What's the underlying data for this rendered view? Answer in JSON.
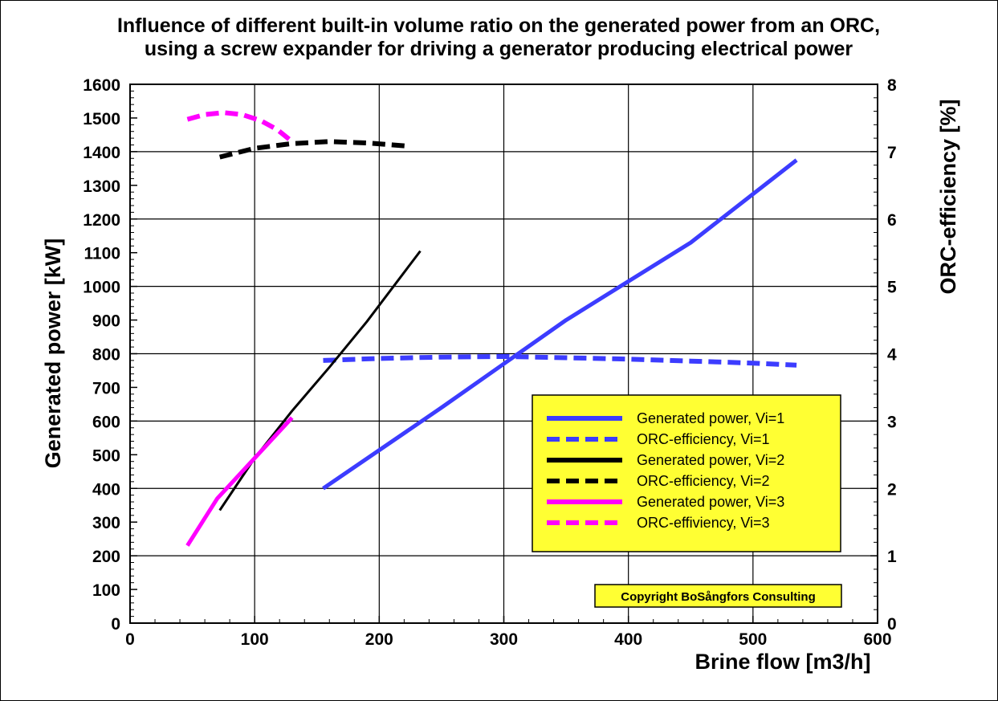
{
  "chart_data": {
    "type": "line",
    "title": [
      "Influence of different built-in volume ratio on the generated power from an ORC,",
      "using a screw expander for driving a generator producing electrical power"
    ],
    "xlabel": "Brine flow [m3/h]",
    "ylabel": "Generated  power [kW]",
    "y2label": "ORC-efficiency [%]",
    "xlim": [
      0,
      600
    ],
    "ylim": [
      0,
      1600
    ],
    "y2lim": [
      0,
      8
    ],
    "xticks": [
      0,
      100,
      200,
      300,
      400,
      500,
      600
    ],
    "yticks": [
      0,
      100,
      200,
      300,
      400,
      500,
      600,
      700,
      800,
      900,
      1000,
      1100,
      1200,
      1300,
      1400,
      1500,
      1600
    ],
    "y2ticks": [
      0,
      1,
      2,
      3,
      4,
      5,
      6,
      7,
      8
    ],
    "grid": true,
    "legend_position": "lower-right",
    "annotation": "Copyright BoSångfors Consulting",
    "series": [
      {
        "name": "Generated power, Vi=1",
        "axis": "left",
        "style": "solid",
        "color": "#3c3cff",
        "x": [
          155,
          250,
          350,
          450,
          535
        ],
        "y": [
          400,
          640,
          900,
          1130,
          1375
        ]
      },
      {
        "name": "ORC-efficiency, Vi=1",
        "axis": "right",
        "style": "dashed",
        "color": "#3c3cff",
        "x": [
          155,
          200,
          250,
          300,
          350,
          400,
          450,
          500,
          535
        ],
        "y": [
          3.9,
          3.93,
          3.95,
          3.96,
          3.94,
          3.92,
          3.89,
          3.86,
          3.83
        ]
      },
      {
        "name": "Generated power, Vi=2",
        "axis": "left",
        "style": "solid",
        "color": "#000000",
        "x": [
          72,
          100,
          130,
          160,
          190,
          233
        ],
        "y": [
          335,
          490,
          630,
          760,
          895,
          1105
        ]
      },
      {
        "name": "ORC-efficiency, Vi=2",
        "axis": "right",
        "style": "dashed",
        "color": "#000000",
        "x": [
          72,
          100,
          130,
          160,
          190,
          225
        ],
        "y": [
          6.92,
          7.05,
          7.12,
          7.15,
          7.13,
          7.08
        ]
      },
      {
        "name": "Generated power, Vi=3",
        "axis": "left",
        "style": "solid",
        "color": "#ff00ff",
        "x": [
          46,
          70,
          100,
          130
        ],
        "y": [
          230,
          370,
          490,
          610
        ]
      },
      {
        "name": "ORC-effiviency, Vi=3",
        "axis": "right",
        "style": "dashed",
        "color": "#ff00ff",
        "x": [
          46,
          60,
          75,
          90,
          105,
          118,
          130
        ],
        "y": [
          7.48,
          7.55,
          7.58,
          7.55,
          7.46,
          7.33,
          7.15
        ]
      }
    ]
  },
  "colors": {
    "legend_background": "#ffff33",
    "copyright_background": "#ffff33"
  }
}
